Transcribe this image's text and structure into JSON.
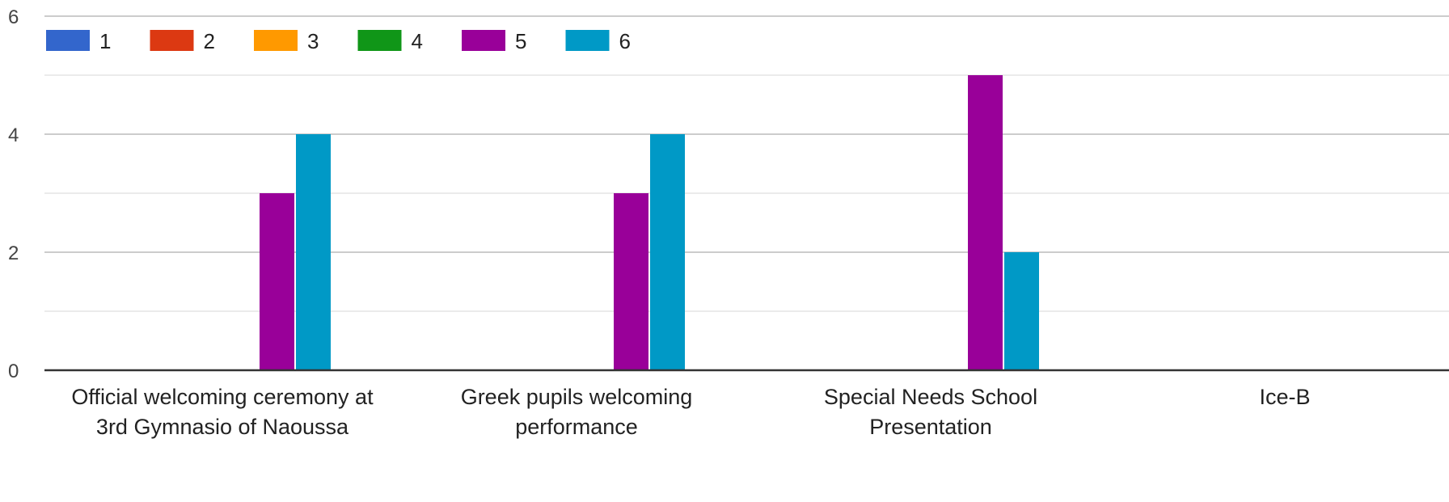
{
  "chart_data": {
    "type": "bar",
    "categories": [
      [
        "Official welcoming ceremony at",
        "3rd Gymnasio of Naoussa"
      ],
      [
        "Greek pupils welcoming",
        "performance"
      ],
      [
        "Special Needs School",
        "Presentation"
      ],
      [
        "Ice-B"
      ]
    ],
    "series": [
      {
        "name": "1",
        "color": "#3366cc",
        "values": [
          0,
          0,
          0,
          0
        ]
      },
      {
        "name": "2",
        "color": "#dc3912",
        "values": [
          0,
          0,
          0,
          0
        ]
      },
      {
        "name": "3",
        "color": "#ff9900",
        "values": [
          0,
          0,
          0,
          0
        ]
      },
      {
        "name": "4",
        "color": "#109618",
        "values": [
          0,
          0,
          0,
          0
        ]
      },
      {
        "name": "5",
        "color": "#990099",
        "values": [
          3,
          3,
          5,
          0
        ]
      },
      {
        "name": "6",
        "color": "#0099c6",
        "values": [
          4,
          4,
          2,
          0
        ]
      }
    ],
    "yticks": [
      0,
      2,
      4,
      6
    ],
    "ylim": [
      0,
      6
    ],
    "grid": true,
    "legend_position": "top-left"
  }
}
